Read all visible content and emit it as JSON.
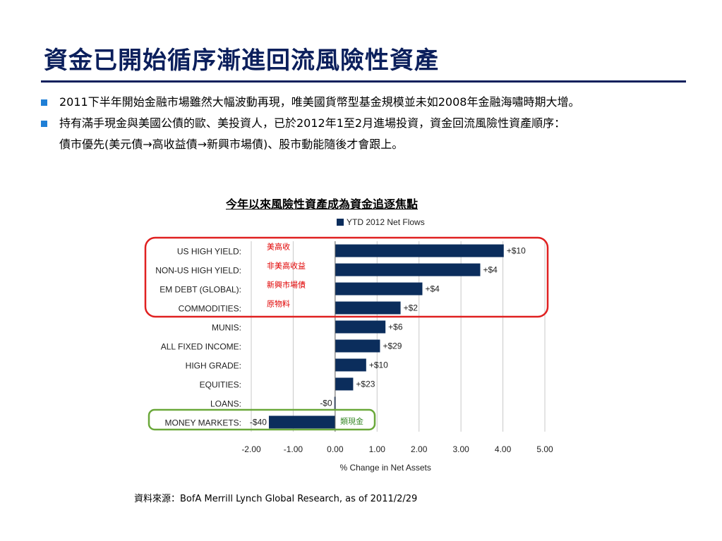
{
  "title": "資金已開始循序漸進回流風險性資產",
  "bullets": [
    {
      "lines": [
        "2011下半年開始金融市場雖然大幅波動再現，唯美國貨幣型基金規模並未如2008年金融海嘯時期大增。"
      ]
    },
    {
      "lines": [
        "持有滿手現金與美國公債的歐、美投資人，已於2012年1至2月進場投資，資金回流風險性資產順序：",
        "債市優先(美元債→高收益債→新興市場債)、股市動能隨後才會跟上。"
      ]
    }
  ],
  "colors": {
    "title": "#0b1f5c",
    "bullet": "#1f7fd6",
    "bar": "#0b2d5c",
    "red_box": "#e02020",
    "green_box": "#6aa83a",
    "cn_red": "#e00000",
    "cn_green": "#3a8a2a"
  },
  "chart_data": {
    "type": "bar",
    "orientation": "horizontal",
    "title": "今年以來風險性資產成為資金追逐焦點",
    "legend": "YTD 2012 Net Flows",
    "legend_position": "top",
    "xlabel": "% Change in Net Assets",
    "xlim": [
      -2,
      5
    ],
    "xticks": [
      "-2.00",
      "-1.00",
      "0.00",
      "1.00",
      "2.00",
      "3.00",
      "4.00",
      "5.00"
    ],
    "grid": true,
    "categories": [
      "US HIGH YIELD:",
      "NON-US HIGH YIELD:",
      "EM DEBT (GLOBAL):",
      "COMMODITIES:",
      "MUNIS:",
      "ALL FIXED INCOME:",
      "HIGH GRADE:",
      "EQUITIES:",
      "LOANS:",
      "MONEY MARKETS:"
    ],
    "values": [
      4.02,
      3.46,
      2.08,
      1.56,
      1.2,
      1.07,
      0.74,
      0.43,
      -0.02,
      -1.58
    ],
    "data_labels": [
      "+$10",
      "+$4",
      "+$4",
      "+$2",
      "+$6",
      "+$29",
      "+$10",
      "+$23",
      "-$0",
      "-$40"
    ],
    "annotations": [
      "美高收",
      "非美高收益",
      "新興市場債",
      "原物料"
    ],
    "cash_annotation": "類現金"
  },
  "source": "資料來源：BofA Merrill Lynch Global Research, as of 2011/2/29"
}
